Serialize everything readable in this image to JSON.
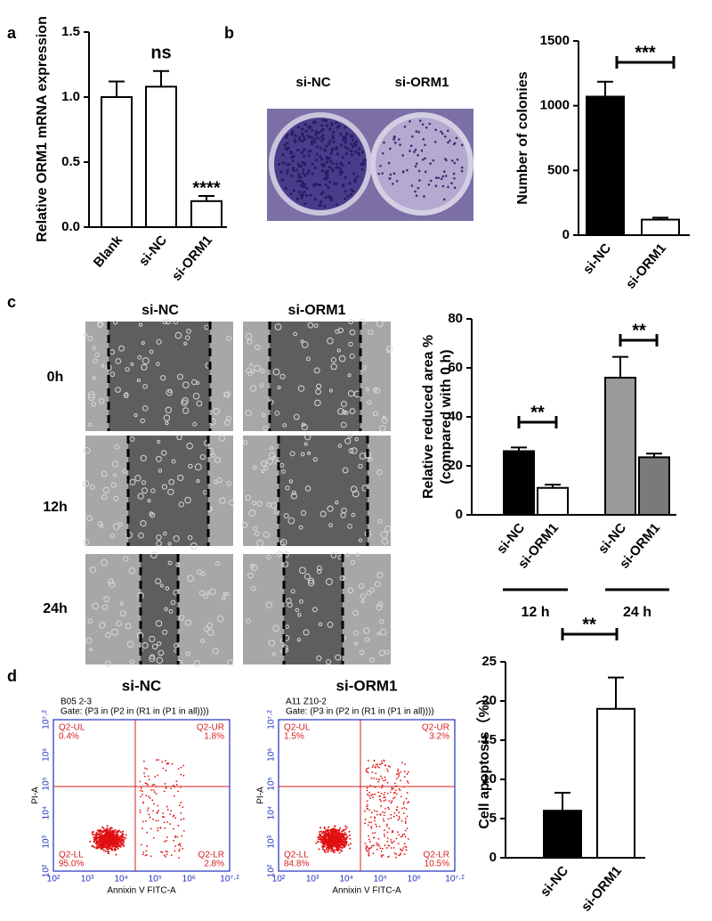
{
  "panel_labels": [
    "a",
    "b",
    "c",
    "d"
  ],
  "chart_data": [
    {
      "type": "bar",
      "ylabel": "Relative ORM1  mRNA expression",
      "categories": [
        "Blank",
        "si-NC",
        "si-ORM1"
      ],
      "values": [
        1.0,
        1.08,
        0.2
      ],
      "errors": [
        0.12,
        0.12,
        0.04
      ],
      "colors": [
        "#ffffff",
        "#ffffff",
        "#ffffff"
      ],
      "ylim": [
        0,
        1.5
      ],
      "yticks": [
        {
          "value": 0,
          "label": "0.0"
        },
        {
          "value": 0.5,
          "label": "0.5"
        },
        {
          "value": 1,
          "label": "1.0"
        },
        {
          "value": 1.5,
          "label": "1.5"
        }
      ],
      "annotations": [
        "ns",
        "****"
      ]
    },
    {
      "type": "bar",
      "ylabel": "Number of colonies",
      "categories": [
        "si-NC",
        "si-ORM1"
      ],
      "values": [
        1070,
        120
      ],
      "errors": [
        115,
        15
      ],
      "colors": [
        "#000000",
        "#ffffff"
      ],
      "ylim": [
        0,
        1500
      ],
      "yticks": [
        0,
        500,
        1000,
        1500
      ],
      "annotations": [
        "***"
      ]
    },
    {
      "type": "bar",
      "ylabel": [
        "Relative reduced area %",
        "(compared with 0 h)"
      ],
      "categories": [
        "si-NC",
        "si-ORM1",
        "si-NC",
        "si-ORM1"
      ],
      "values": [
        26,
        11,
        56,
        23.5
      ],
      "errors": [
        1.5,
        1.3,
        8.5,
        1.5
      ],
      "colors": [
        "#000000",
        "#ffffff",
        "#9a9a9a",
        "#7a7a7a"
      ],
      "groups": [
        "12 h",
        "24 h"
      ],
      "ylim": [
        0,
        80
      ],
      "yticks": [
        0,
        20,
        40,
        60,
        80
      ],
      "annotations": [
        "**",
        "**"
      ]
    },
    {
      "type": "bar",
      "ylabel": "Cell apoptosis（%）",
      "categories": [
        "si-NC",
        "si-ORM1"
      ],
      "values": [
        6,
        19
      ],
      "errors": [
        2.3,
        4
      ],
      "colors": [
        "#000000",
        "#ffffff"
      ],
      "ylim": [
        0,
        25
      ],
      "yticks": [
        0,
        5,
        10,
        15,
        20,
        25
      ],
      "annotations": [
        "**"
      ]
    }
  ],
  "colony": {
    "labels": [
      "si-NC",
      "si-ORM1"
    ]
  },
  "wound": {
    "columns": [
      "si-NC",
      "si-ORM1"
    ],
    "rows": [
      "0h",
      "12h",
      "24h"
    ]
  },
  "flow": [
    {
      "title": "si-NC",
      "sample": "B05 2-3",
      "gate": "Gate: (P3 in (P2 in (R1 in (P1 in all))))",
      "ul": [
        "Q2-UL",
        "0.4%"
      ],
      "ur": [
        "Q2-UR",
        "1.8%"
      ],
      "ll": [
        "Q2-LL",
        "95.0%"
      ],
      "lr": [
        "Q2-LR",
        "2.8%"
      ],
      "xlabel": "Annixin V FITC-A",
      "ylabel": "PI-A",
      "ticks": [
        "10²",
        "10³",
        "10⁴",
        "10⁵",
        "10⁶",
        "10⁷·²"
      ]
    },
    {
      "title": "si-ORM1",
      "sample": "A11 Z10-2",
      "gate": "Gate: (P3 in (P2 in (R1 in (P1 in all))))",
      "ul": [
        "Q2-UL",
        "1.5%"
      ],
      "ur": [
        "Q2-UR",
        "3.2%"
      ],
      "ll": [
        "Q2-LL",
        "84.8%"
      ],
      "lr": [
        "Q2-LR",
        "10.5%"
      ],
      "xlabel": "Annixin V FITC-A",
      "ylabel": "PI-A",
      "ticks": [
        "10²",
        "10³",
        "10⁴",
        "10⁵",
        "10⁶",
        "10⁷·²"
      ]
    }
  ]
}
